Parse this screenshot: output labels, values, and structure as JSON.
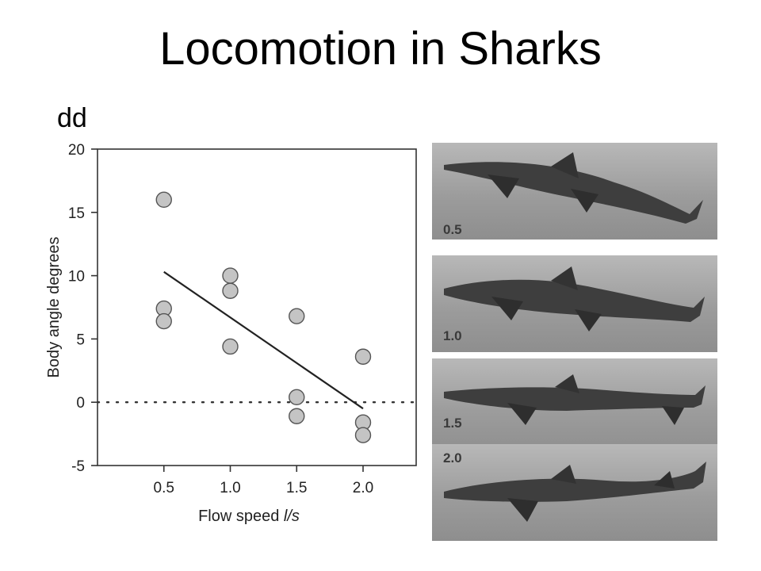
{
  "slide": {
    "title": "Locomotion in Sharks",
    "subtitle": "dd"
  },
  "chart_data": {
    "type": "scatter",
    "title": "",
    "xlabel": "Flow speed",
    "xlabel_unit": "l/s",
    "ylabel": "Body angle degrees",
    "xlim": [
      0,
      2.4
    ],
    "ylim": [
      -5,
      20
    ],
    "x_ticks": [
      "0.5",
      "1.0",
      "1.5",
      "2.0"
    ],
    "y_ticks": [
      "-5",
      "0",
      "5",
      "10",
      "15",
      "20"
    ],
    "grid": false,
    "reference_line": {
      "y": 0,
      "style": "dotted"
    },
    "series": [
      {
        "points": [
          {
            "x": 0.5,
            "y": 16.0
          },
          {
            "x": 0.5,
            "y": 7.4
          },
          {
            "x": 0.5,
            "y": 6.4
          },
          {
            "x": 1.0,
            "y": 10.0
          },
          {
            "x": 1.0,
            "y": 8.8
          },
          {
            "x": 1.0,
            "y": 4.4
          },
          {
            "x": 1.5,
            "y": 6.8
          },
          {
            "x": 1.5,
            "y": 0.4
          },
          {
            "x": 1.5,
            "y": -1.1
          },
          {
            "x": 2.0,
            "y": 3.6
          },
          {
            "x": 2.0,
            "y": -1.6
          },
          {
            "x": 2.0,
            "y": -2.6
          }
        ]
      }
    ],
    "trendline": {
      "x": [
        0.5,
        2.0
      ],
      "y": [
        10.3,
        -0.5
      ]
    },
    "marker_fill": "#c4c4c4",
    "marker_stroke": "#555555"
  },
  "photos": [
    {
      "label": "0.5"
    },
    {
      "label": "1.0"
    },
    {
      "label": "1.5"
    },
    {
      "label": "2.0"
    }
  ]
}
